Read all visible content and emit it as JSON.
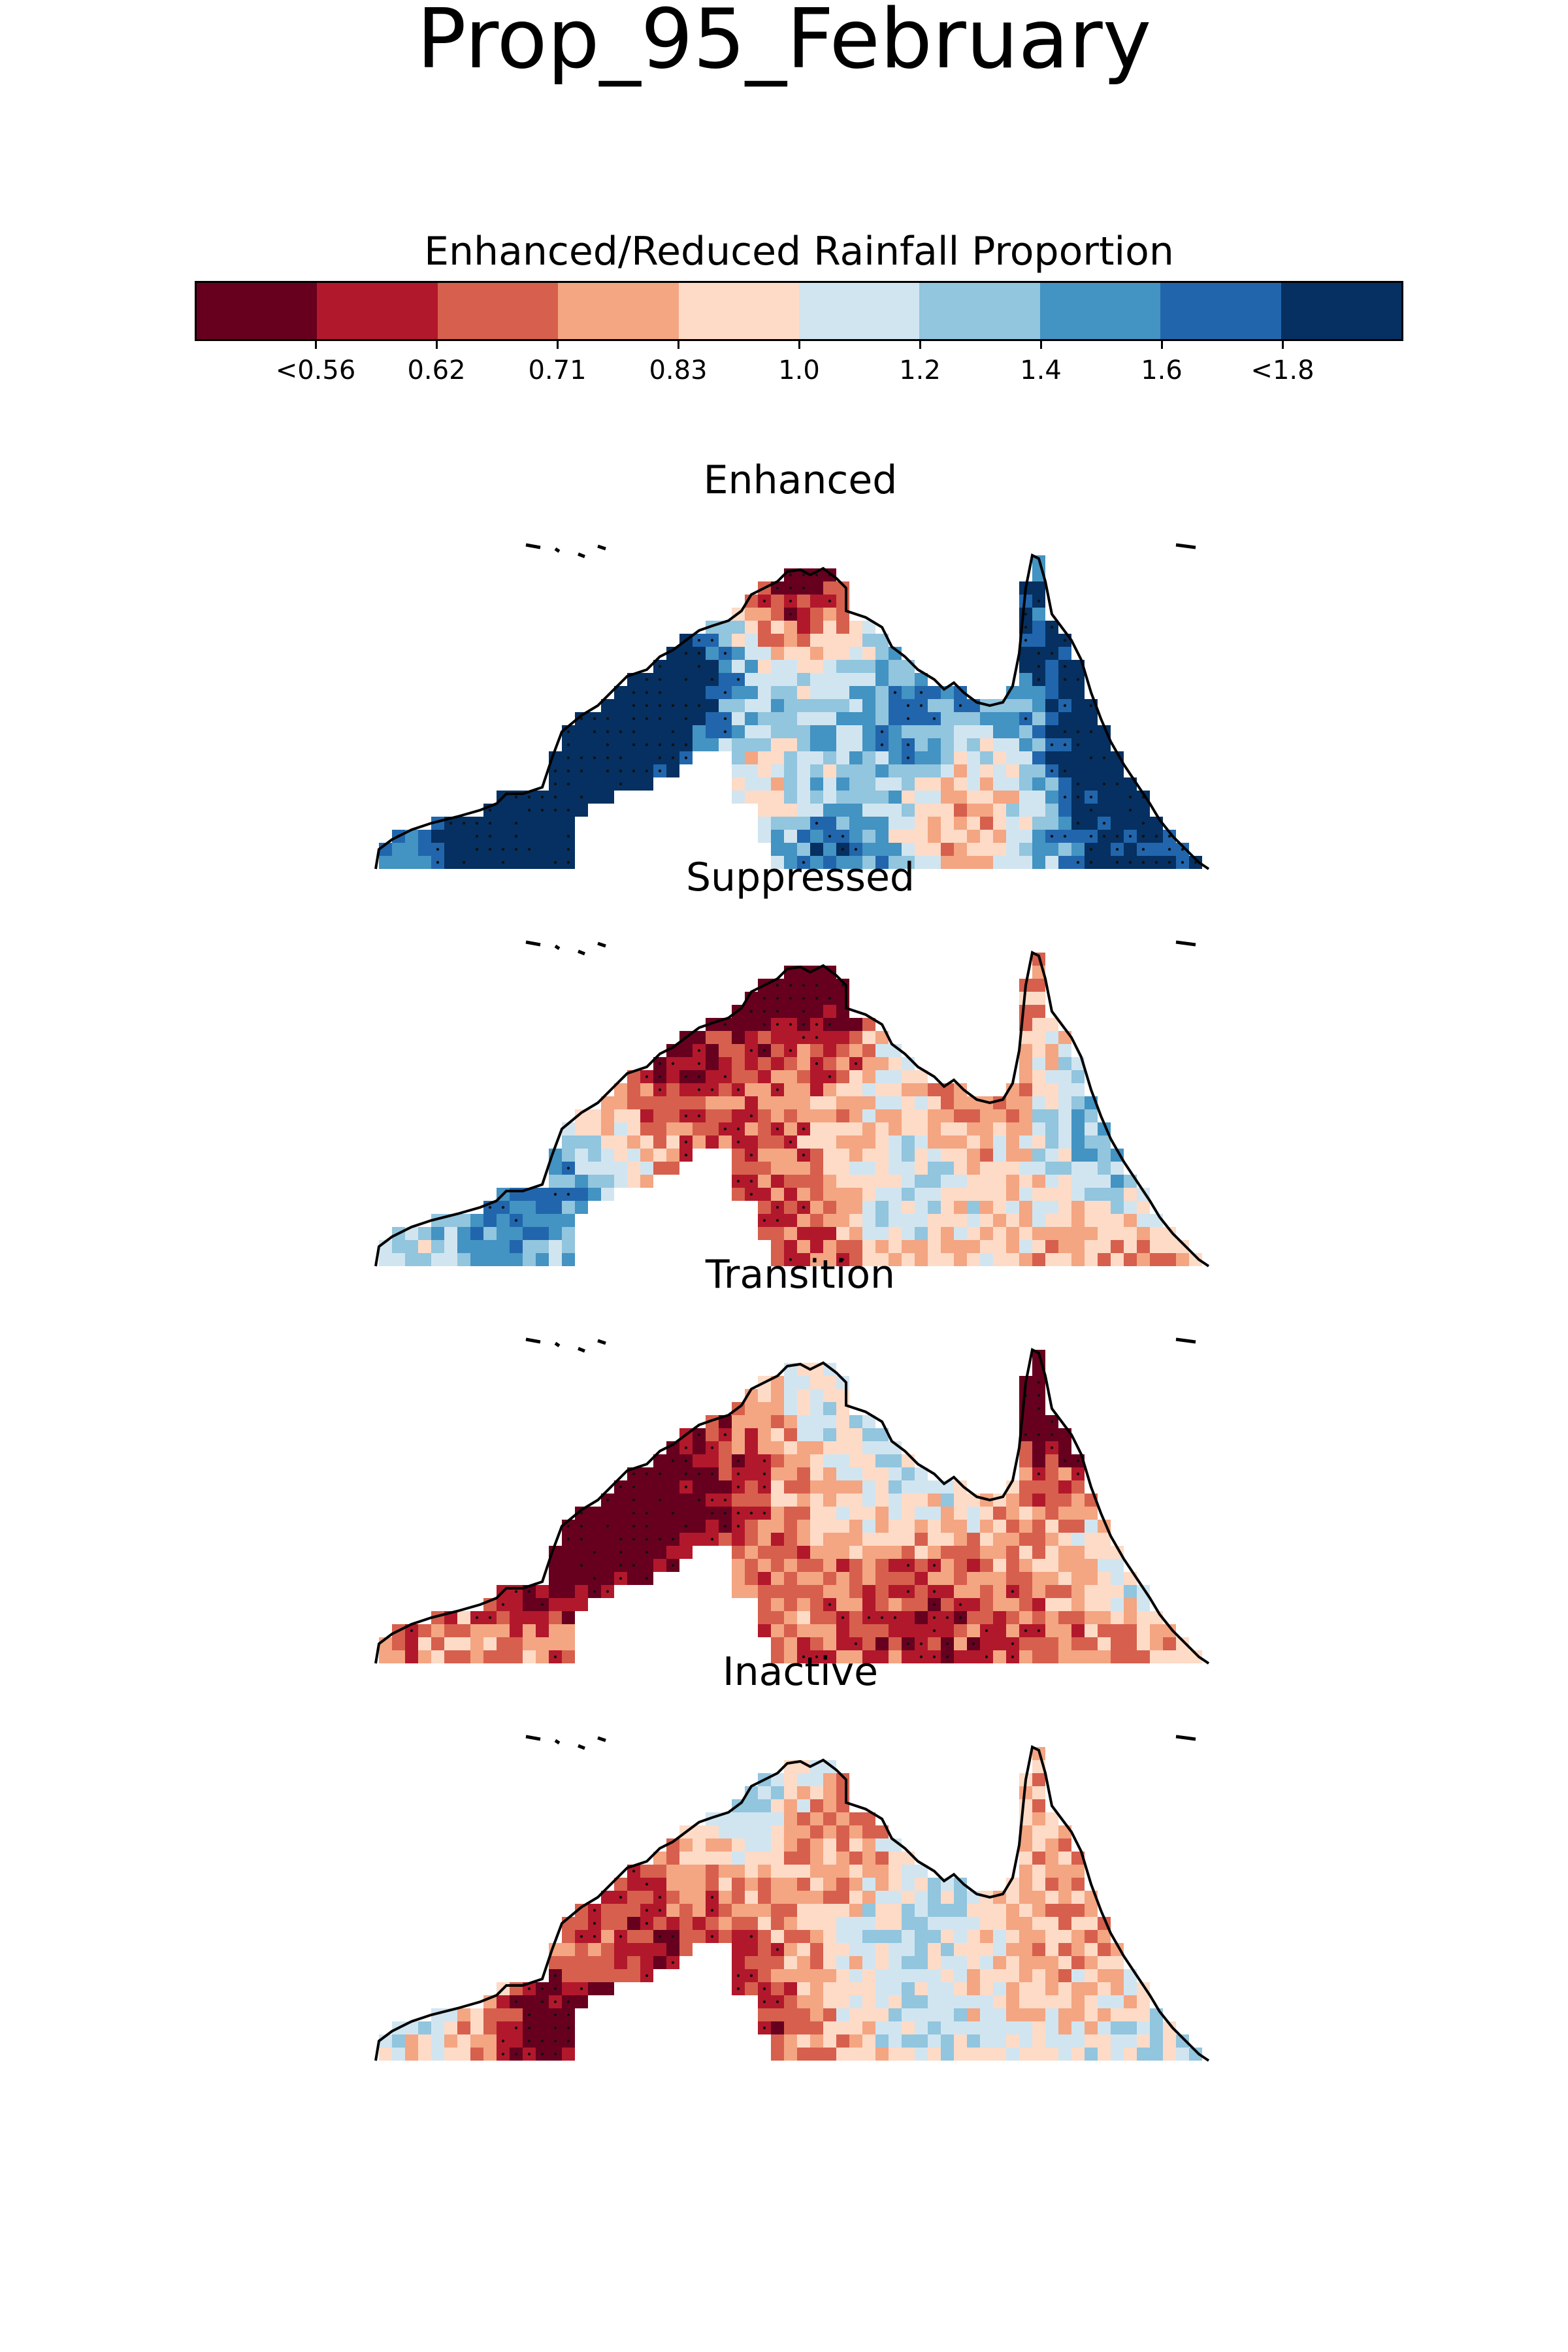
{
  "figure_title": "Prop_95_February",
  "colorbar": {
    "label": "Enhanced/Reduced Rainfall Proportion",
    "colors": [
      "#67001f",
      "#b2182b",
      "#d6604d",
      "#f4a582",
      "#fddbc7",
      "#d1e5f0",
      "#92c5de",
      "#4393c3",
      "#2166ac",
      "#053061"
    ],
    "tick_labels": [
      "<0.56",
      "0.62",
      "0.71",
      "0.83",
      "1.0",
      "1.2",
      "1.4",
      "1.6",
      "<1.8"
    ],
    "boundaries": [
      0.56,
      0.62,
      0.71,
      0.83,
      1.0,
      1.2,
      1.4,
      1.6,
      1.8
    ]
  },
  "panels": [
    {
      "title": "Enhanced",
      "tone": "wet"
    },
    {
      "title": "Suppressed",
      "tone": "dry"
    },
    {
      "title": "Transition",
      "tone": "mixed-dry"
    },
    {
      "title": "Inactive",
      "tone": "neutral"
    }
  ],
  "map_region": "Northern Australia"
}
